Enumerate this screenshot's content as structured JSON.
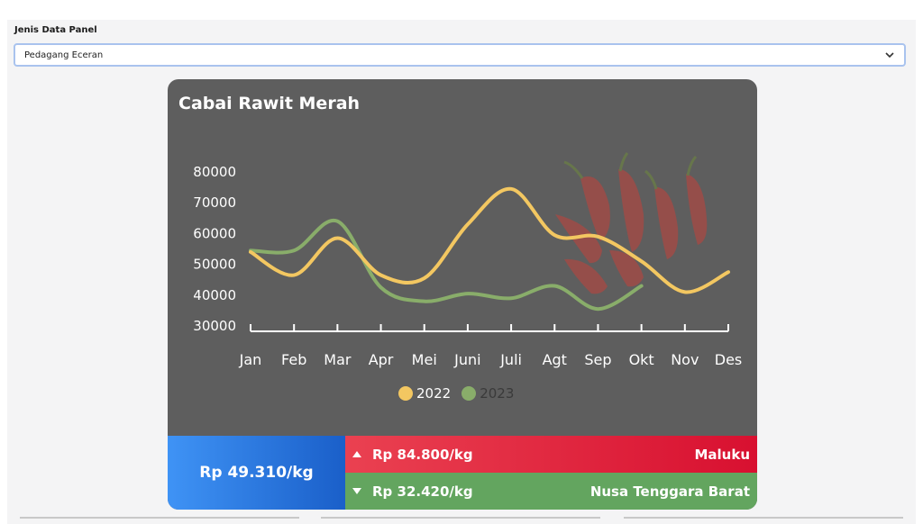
{
  "filter": {
    "label": "Jenis Data Panel",
    "selected": "Pedagang Eceran"
  },
  "card": {
    "title": "Cabai Rawit Merah"
  },
  "chart_data": {
    "type": "line",
    "title": "Cabai Rawit Merah",
    "categories": [
      "Jan",
      "Feb",
      "Mar",
      "Apr",
      "Mei",
      "Juni",
      "Juli",
      "Agt",
      "Sep",
      "Okt",
      "Nov",
      "Des"
    ],
    "yticks": [
      "80000",
      "70000",
      "60000",
      "50000",
      "40000",
      "30000"
    ],
    "ylim": [
      30000,
      80000
    ],
    "series": [
      {
        "name": "2022",
        "color": "#f3c761",
        "values": [
          54000,
          46500,
          58500,
          46500,
          45500,
          63000,
          74500,
          59500,
          59000,
          51000,
          41000,
          47500
        ]
      },
      {
        "name": "2023",
        "color": "#89ad6a",
        "values": [
          54500,
          54500,
          64000,
          42500,
          38000,
          40500,
          39000,
          43000,
          35500,
          43000,
          null,
          null
        ]
      }
    ],
    "legend_position": "bottom",
    "grid": false
  },
  "stats": {
    "average": "Rp 49.310/kg",
    "highest": {
      "price": "Rp 84.800/kg",
      "region": "Maluku"
    },
    "lowest": {
      "price": "Rp 32.420/kg",
      "region": "Nusa Tenggara Barat"
    }
  },
  "colors": {
    "card_bg": "#5e5e5e",
    "avg_blue": "#2f7de8",
    "high_red": "#e02a42",
    "low_green": "#63a55f"
  }
}
